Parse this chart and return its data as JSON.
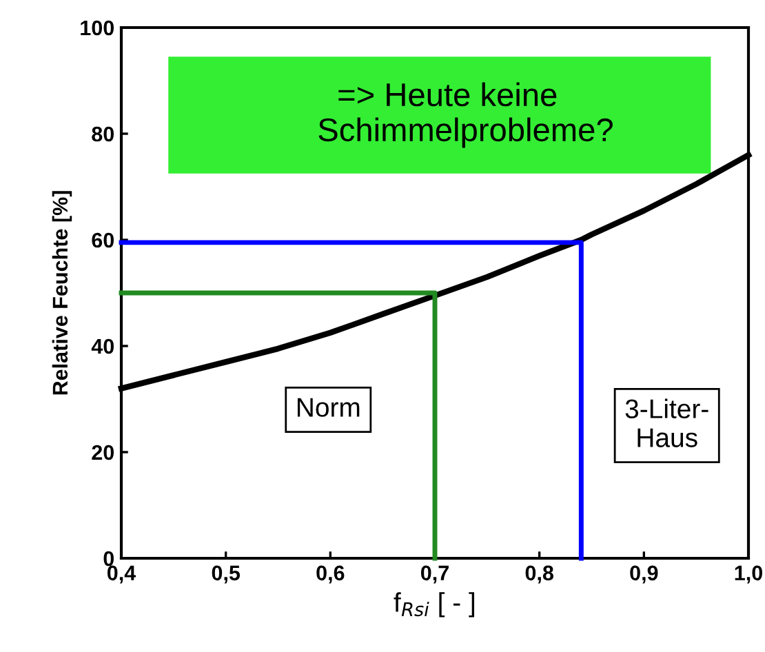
{
  "chart_data": {
    "type": "line",
    "xlabel": "f$_{Rsi}$ [ - ]",
    "ylabel": "Relative Feuchte [%]",
    "xlim": [
      0.4,
      1.0
    ],
    "xticks": [
      {
        "value": 0.4,
        "label": "0,4"
      },
      {
        "value": 0.5,
        "label": "0,5"
      },
      {
        "value": 0.6,
        "label": "0,6"
      },
      {
        "value": 0.7,
        "label": "0,7"
      },
      {
        "value": 0.8,
        "label": "0,8"
      },
      {
        "value": 0.9,
        "label": "0,9"
      },
      {
        "value": 1.0,
        "label": "1,0"
      }
    ],
    "ylim": [
      0,
      100
    ],
    "yticks": [
      0,
      20,
      40,
      60,
      80,
      100
    ],
    "grid": false,
    "marker": "none",
    "line_style": "solid",
    "series": [
      {
        "color": "#000000",
        "x": [
          0.4,
          0.45,
          0.5,
          0.55,
          0.6,
          0.65,
          0.7,
          0.75,
          0.8,
          0.84,
          0.85,
          0.9,
          0.95,
          1.0
        ],
        "values": [
          32,
          34.5,
          37,
          39.5,
          42.5,
          46,
          49.5,
          53,
          57,
          60,
          61,
          65.5,
          70.5,
          76
        ]
      },
      {
        "color": "#228b22",
        "x": [
          0.4,
          0.7,
          0.7
        ],
        "values": [
          50,
          50,
          0
        ]
      },
      {
        "color": "#0000ff",
        "x": [
          0.4,
          0.84,
          0.84
        ],
        "values": [
          59.5,
          59.5,
          0
        ]
      }
    ],
    "annotations": [
      "=> Heute keine\n    Schimmelprobleme?",
      "Norm",
      "3-Liter-\nHaus"
    ]
  }
}
